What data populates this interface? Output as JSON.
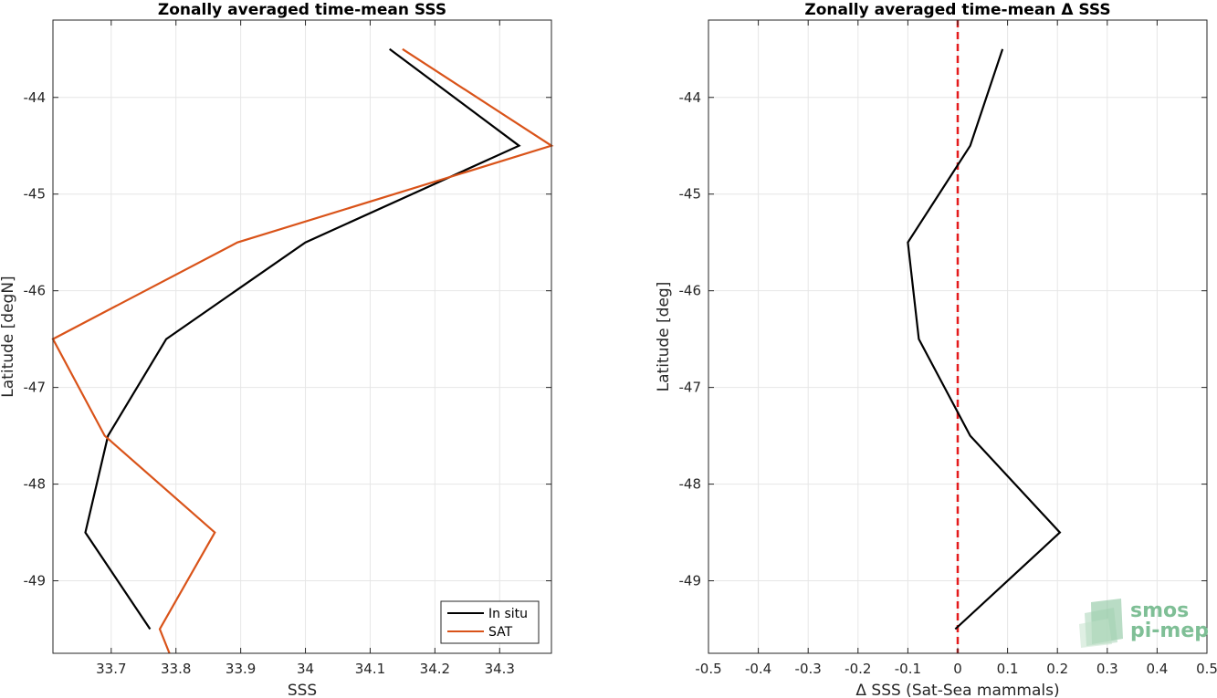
{
  "chart_data": [
    {
      "type": "line",
      "title": "Zonally averaged time-mean SSS",
      "xlabel": "SSS",
      "ylabel": "Latitude [degN]",
      "xlim": [
        33.61,
        34.38
      ],
      "ylim": [
        -49.75,
        -43.2
      ],
      "xticks": [
        33.7,
        33.8,
        33.9,
        34,
        34.1,
        34.2,
        34.3
      ],
      "yticks": [
        -44,
        -45,
        -46,
        -47,
        -48,
        -49
      ],
      "grid": true,
      "legend_position": "bottom-right",
      "series": [
        {
          "name": "In situ",
          "color": "#000000",
          "x": [
            34.13,
            34.33,
            34.0,
            33.785,
            33.695,
            33.66,
            33.76
          ],
          "y": [
            -43.5,
            -44.5,
            -45.5,
            -46.5,
            -47.5,
            -48.5,
            -49.5
          ]
        },
        {
          "name": "SAT",
          "color": "#d95319",
          "x": [
            34.15,
            34.38,
            33.895,
            33.61,
            33.69,
            33.86,
            33.775,
            33.79
          ],
          "y": [
            -43.5,
            -44.5,
            -45.5,
            -46.5,
            -47.5,
            -48.5,
            -49.5,
            -49.75
          ]
        }
      ]
    },
    {
      "type": "line",
      "title": "Zonally averaged time-mean Δ SSS",
      "xlabel": "Δ SSS (Sat-Sea mammals)",
      "ylabel": "Latitude [deg]",
      "xlim": [
        -0.5,
        0.5
      ],
      "ylim": [
        -49.75,
        -43.2
      ],
      "xticks": [
        -0.5,
        -0.4,
        -0.3,
        -0.2,
        -0.1,
        0,
        0.1,
        0.2,
        0.3,
        0.4,
        0.5
      ],
      "yticks": [
        -44,
        -45,
        -46,
        -47,
        -48,
        -49
      ],
      "grid": true,
      "reference_line": {
        "x": 0,
        "color": "#e41a1c",
        "style": "dashed"
      },
      "series": [
        {
          "color": "#000000",
          "x": [
            0.09,
            0.025,
            -0.1,
            -0.078,
            0.025,
            0.205,
            -0.005
          ],
          "y": [
            -43.5,
            -44.5,
            -45.5,
            -46.5,
            -47.5,
            -48.5,
            -49.5
          ]
        }
      ]
    }
  ],
  "logo": {
    "line1": "smos",
    "line2": "pi-mep",
    "color": "#7fbf96"
  }
}
